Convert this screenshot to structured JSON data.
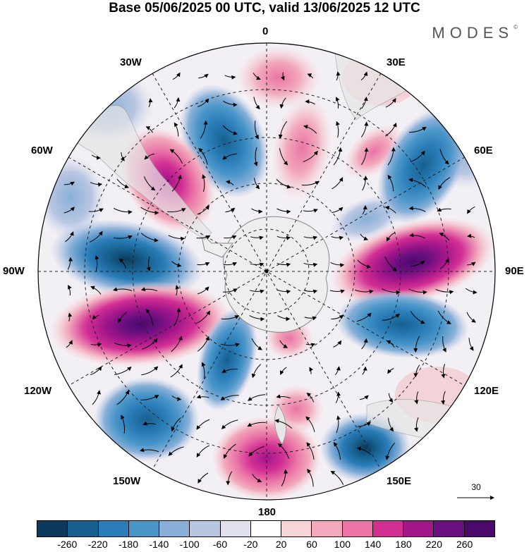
{
  "title": "Base 05/06/2025 00 UTC, valid 13/06/2025 12 UTC",
  "brand": "MODES",
  "brand_mark": "©",
  "longitude_labels": {
    "n": "0",
    "ne": "30E",
    "ene": "60E",
    "e": "90E",
    "ese": "120E",
    "se": "150E",
    "s": "180",
    "sw": "150W",
    "wsw": "120W",
    "w": "90W",
    "wnw": "60W",
    "nw": "30W"
  },
  "reference_vector": "30",
  "colorbar": {
    "ticks": [
      "-260",
      "-220",
      "-180",
      "-140",
      "-100",
      "-60",
      "-20",
      "20",
      "60",
      "100",
      "140",
      "180",
      "220",
      "260"
    ],
    "colors": [
      "#0d3a5c",
      "#16608f",
      "#2a7db8",
      "#4a96c9",
      "#88b0d8",
      "#b8c6e2",
      "#e0e0ee",
      "#ffffff",
      "#f7d4d8",
      "#f2a9bc",
      "#ea74a6",
      "#d22f93",
      "#a3168a",
      "#6a0f80",
      "#4a0a6a"
    ]
  },
  "map_data": {
    "projection": "south polar stereographic",
    "anomalies": [
      {
        "sign": "negative",
        "lat_lon": "30W-45W",
        "peak": "-180"
      },
      {
        "sign": "positive",
        "lat_lon": "60W-50W",
        "peak": "180"
      },
      {
        "sign": "positive",
        "lat_lon": "15E-0",
        "peak": "140"
      },
      {
        "sign": "negative",
        "lat_lon": "60E",
        "peak": "-180"
      },
      {
        "sign": "negative",
        "lat_lon": "90W",
        "peak": "-220"
      },
      {
        "sign": "positive",
        "lat_lon": "90E",
        "peak": "260"
      },
      {
        "sign": "positive",
        "lat_lon": "105W",
        "peak": "220"
      },
      {
        "sign": "negative",
        "lat_lon": "115E",
        "peak": "-180"
      },
      {
        "sign": "negative",
        "lat_lon": "150W",
        "peak": "-180"
      },
      {
        "sign": "negative",
        "lat_lon": "150E",
        "peak": "-220"
      },
      {
        "sign": "positive",
        "lat_lon": "180",
        "peak": "220"
      }
    ]
  }
}
